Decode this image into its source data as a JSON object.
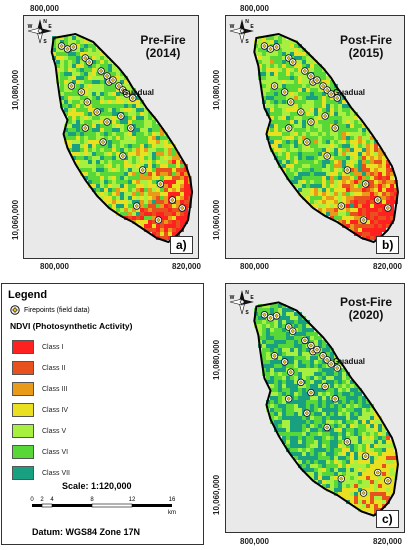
{
  "colors": {
    "class1": "#ff2020",
    "class2": "#e8501e",
    "class3": "#e89a18",
    "class4": "#e8e020",
    "class5": "#a8f040",
    "class6": "#58d838",
    "class7": "#18a080",
    "panel_bg": "#e9e9e9",
    "boundary": "#000000"
  },
  "panels": [
    {
      "title_line1": "Pre-Fire",
      "title_line2": "(2014)",
      "label": "a)",
      "coord_top": "800,000",
      "coord_bottom_left": "800,000",
      "coord_bottom_right": "820,000",
      "coord_left_top": "10,080,000",
      "coord_left_bottom": "10,060,000",
      "town": "Guadual",
      "dominant": [
        "class6",
        "class5",
        "class7"
      ],
      "east_fire": "class1"
    },
    {
      "title_line1": "Post-Fire",
      "title_line2": "(2015)",
      "label": "b)",
      "coord_top": "800,000",
      "coord_bottom_left": "800,000",
      "coord_bottom_right": "820,000",
      "coord_left_top": "10,080,000",
      "coord_left_bottom": "10,060,000",
      "town": "Guadual",
      "dominant": [
        "class6",
        "class5",
        "class7"
      ],
      "east_fire": "class1"
    },
    {
      "title_line1": "Post-Fire",
      "title_line2": "(2020)",
      "label": "c)",
      "coord_top": "",
      "coord_bottom_left": "800,000",
      "coord_bottom_right": "820,000",
      "coord_left_top": "10,080,000",
      "coord_left_bottom": "10,060,000",
      "town": "Guadual",
      "dominant": [
        "class7",
        "class6",
        "class5"
      ],
      "east_fire": "class2"
    }
  ],
  "legend": {
    "title": "Legend",
    "firepoints_label": "Firepoints (field data)",
    "ndvi_title": "NDVI (Photosynthetic Activity)",
    "classes": [
      {
        "label": "Class I",
        "color": "#ff2020"
      },
      {
        "label": "Class II",
        "color": "#e8501e"
      },
      {
        "label": "Class III",
        "color": "#e89a18"
      },
      {
        "label": "Class IV",
        "color": "#e8e020"
      },
      {
        "label": "Class V",
        "color": "#a8f040"
      },
      {
        "label": "Class VI",
        "color": "#58d838"
      },
      {
        "label": "Class VII",
        "color": "#18a080"
      }
    ],
    "scale_label": "Scale:  1:120,000",
    "scale_ticks": [
      "0",
      "2",
      "4",
      "8",
      "12",
      "16"
    ],
    "scale_unit": "km",
    "datum": "Datum:  WGS84 Zone 17N"
  },
  "north_arrow": {
    "n": "N",
    "s": "S",
    "e": "E",
    "w": "W"
  }
}
